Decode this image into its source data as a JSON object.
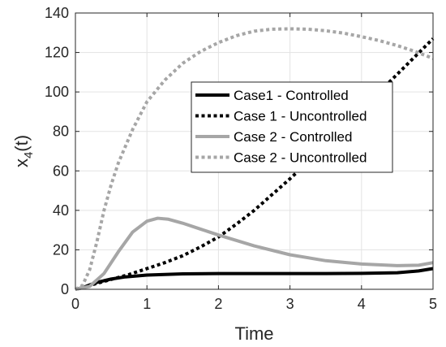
{
  "chart_data": {
    "type": "line",
    "xlabel": "Time",
    "ylabel": "x4(t)",
    "ylabel_main": "x",
    "ylabel_sub": "4",
    "ylabel_tail": "(t)",
    "xlim": [
      0,
      5
    ],
    "ylim": [
      0,
      140
    ],
    "xticks": [
      0,
      1,
      2,
      3,
      4,
      5
    ],
    "yticks": [
      0,
      20,
      40,
      60,
      80,
      100,
      120,
      140
    ],
    "grid": true,
    "legend_position": "top-right",
    "series": [
      {
        "name": "Case1 - Controlled",
        "color": "#000000",
        "dash": "solid",
        "x": [
          0,
          0.1,
          0.2,
          0.3,
          0.5,
          0.7,
          1.0,
          1.5,
          2.0,
          2.5,
          3.0,
          3.5,
          4.0,
          4.5,
          4.8,
          5.0
        ],
        "y": [
          0,
          0.8,
          2.2,
          3.5,
          5.2,
          6.3,
          7.2,
          7.8,
          8.0,
          8.0,
          8.0,
          8.0,
          8.1,
          8.4,
          9.3,
          10.5
        ]
      },
      {
        "name": "Case 1 - Uncontrolled",
        "color": "#000000",
        "dash": "dotted",
        "x": [
          0,
          0.25,
          0.5,
          0.75,
          1.0,
          1.25,
          1.5,
          1.75,
          2.0,
          2.25,
          2.5,
          2.75,
          3.0,
          3.25,
          3.5,
          3.75,
          4.0,
          4.25,
          4.5,
          4.75,
          5.0
        ],
        "y": [
          0,
          2.5,
          5.0,
          7.5,
          10.5,
          13.5,
          17.0,
          21.5,
          26.5,
          33.0,
          40.0,
          48.0,
          56.0,
          64.5,
          73.0,
          82.0,
          91.0,
          100.0,
          109.0,
          118.0,
          127.0
        ]
      },
      {
        "name": "Case 2 - Controlled",
        "color": "#a6a6a6",
        "dash": "solid",
        "x": [
          0,
          0.2,
          0.4,
          0.6,
          0.8,
          1.0,
          1.15,
          1.3,
          1.5,
          1.75,
          2.0,
          2.5,
          3.0,
          3.5,
          4.0,
          4.5,
          4.8,
          5.0
        ],
        "y": [
          0,
          1.5,
          8.0,
          19.0,
          29.0,
          34.5,
          36.0,
          35.5,
          33.5,
          30.5,
          27.5,
          22.0,
          17.5,
          14.5,
          12.8,
          12.0,
          12.2,
          13.5
        ]
      },
      {
        "name": "Case 2 - Uncontrolled",
        "color": "#a6a6a6",
        "dash": "dotted",
        "x": [
          0,
          0.1,
          0.2,
          0.3,
          0.4,
          0.5,
          0.6,
          0.8,
          1.0,
          1.25,
          1.5,
          1.75,
          2.0,
          2.25,
          2.5,
          2.75,
          3.0,
          3.25,
          3.5,
          3.75,
          4.0,
          4.25,
          4.5,
          4.75,
          5.0
        ],
        "y": [
          0,
          2.0,
          10.0,
          24.0,
          40.0,
          53.0,
          64.0,
          81.0,
          95.0,
          106.0,
          114.5,
          120.5,
          125.0,
          128.5,
          130.8,
          131.8,
          132.0,
          131.8,
          131.0,
          129.8,
          128.0,
          126.0,
          123.5,
          120.5,
          117.0
        ]
      }
    ]
  }
}
